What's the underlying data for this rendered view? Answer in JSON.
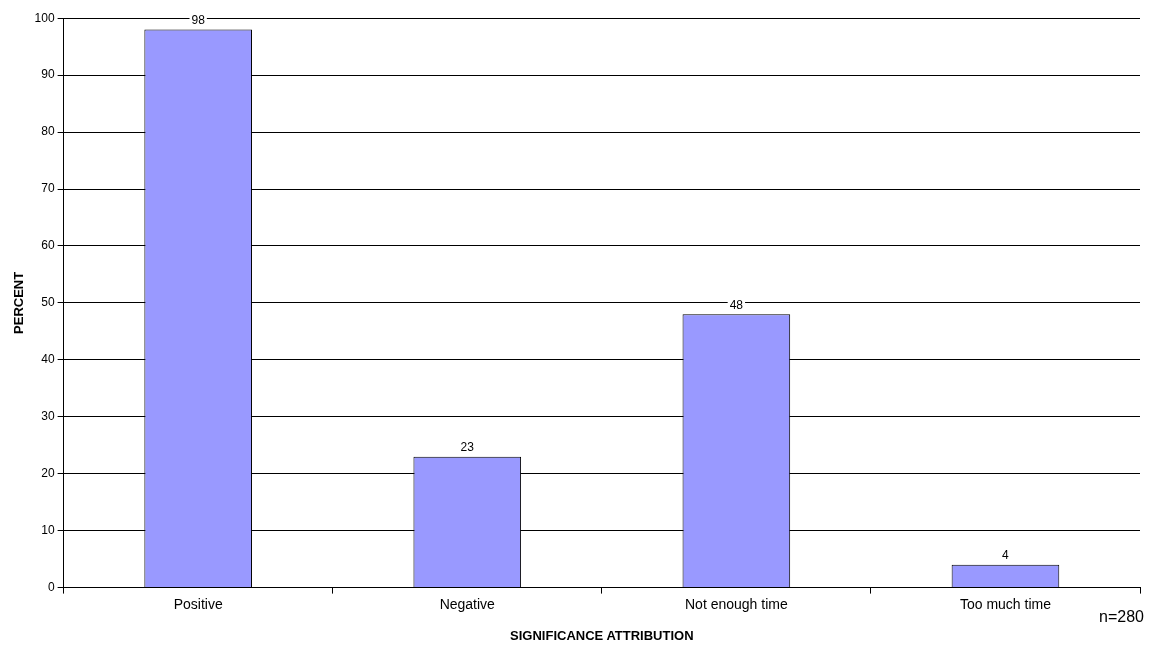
{
  "chart_data": {
    "type": "bar",
    "xlabel": "SIGNIFICANCE ATTRIBUTION",
    "ylabel": "PERCENT",
    "categories": [
      "Positive",
      "Negative",
      "Not enough time",
      "Too much time"
    ],
    "values": [
      98,
      23,
      48,
      4
    ],
    "color": "#9999ff",
    "ylim": [
      0,
      100
    ],
    "yticks": [
      0,
      10,
      20,
      30,
      40,
      50,
      60,
      70,
      80,
      90,
      100
    ],
    "grid": "y",
    "legend": false,
    "data_labels": true,
    "annotations": [
      "n=280"
    ]
  }
}
